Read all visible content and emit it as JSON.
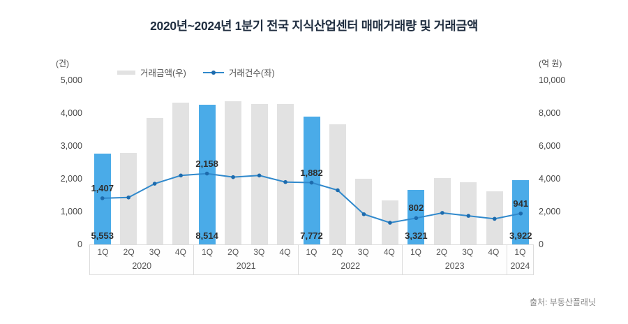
{
  "title": "2020년~2024년 1분기 전국 지식산업센터 매매거래량 및 거래금액",
  "source": {
    "label": "출처: 부동산플래닛"
  },
  "chart_data": {
    "type": "combo-bar-line",
    "title": "2020년~2024년 1분기 전국 지식산업센터 매매거래량 및 거래금액",
    "left_axis": {
      "unit": "(건)",
      "min": 0,
      "max": 5000,
      "ticks": [
        "5,000",
        "4,000",
        "3,000",
        "2,000",
        "1,000",
        "0"
      ]
    },
    "right_axis": {
      "unit": "(억 원)",
      "min": 0,
      "max": 10000,
      "ticks": [
        "10,000",
        "8,000",
        "6,000",
        "4,000",
        "2,000",
        "0"
      ]
    },
    "legend": [
      {
        "label": "거래금액(우)",
        "type": "bar"
      },
      {
        "label": "거래건수(좌)",
        "type": "line"
      }
    ],
    "groups": [
      {
        "year": "2020",
        "quarters": [
          "1Q",
          "2Q",
          "3Q",
          "4Q"
        ]
      },
      {
        "year": "2021",
        "quarters": [
          "1Q",
          "2Q",
          "3Q",
          "4Q"
        ]
      },
      {
        "year": "2022",
        "quarters": [
          "1Q",
          "2Q",
          "3Q",
          "4Q"
        ]
      },
      {
        "year": "2023",
        "quarters": [
          "1Q",
          "2Q",
          "3Q",
          "4Q"
        ]
      },
      {
        "year": "2024",
        "quarters": [
          "1Q"
        ]
      }
    ],
    "categories": [
      "1Q",
      "2Q",
      "3Q",
      "4Q",
      "1Q",
      "2Q",
      "3Q",
      "4Q",
      "1Q",
      "2Q",
      "3Q",
      "4Q",
      "1Q",
      "2Q",
      "3Q",
      "4Q",
      "1Q"
    ],
    "bars": {
      "name": "거래금액(우)",
      "axis": "right",
      "values": [
        5553,
        5580,
        7700,
        8650,
        8514,
        8730,
        8550,
        8550,
        7772,
        7300,
        4000,
        2700,
        3321,
        4050,
        3780,
        3250,
        3922
      ],
      "labels": {
        "0": "5,553",
        "4": "8,514",
        "8": "7,772",
        "12": "3,321",
        "16": "3,922"
      }
    },
    "line": {
      "name": "거래건수(좌)",
      "axis": "left",
      "values": [
        1407,
        1430,
        1850,
        2100,
        2158,
        2050,
        2100,
        1900,
        1882,
        1650,
        920,
        660,
        802,
        960,
        870,
        780,
        941
      ],
      "labels": {
        "0": "1,407",
        "4": "2,158",
        "8": "1,882",
        "12": "802",
        "16": "941"
      }
    },
    "highlight_indices": [
      0,
      4,
      8,
      12,
      16
    ],
    "colors": {
      "bar": "#e2e2e2",
      "bar_highlight": "#4aabe8",
      "line": "#3089cc",
      "marker": "#1d6bad",
      "title": "#202e40"
    }
  }
}
